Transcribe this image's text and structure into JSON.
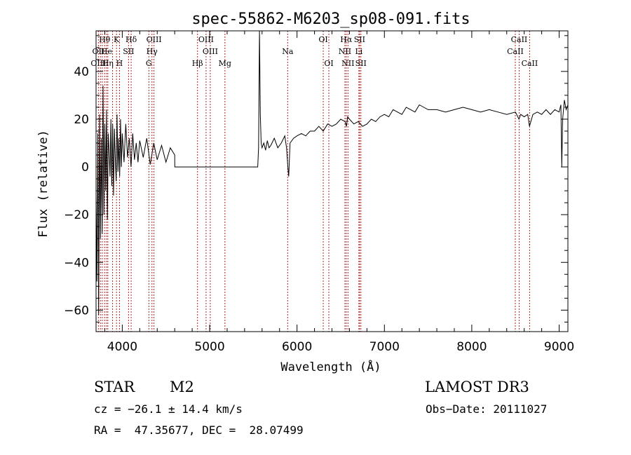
{
  "chart_data": {
    "type": "line",
    "title": "spec-55862-M6203_sp08-091.fits",
    "xlabel": "Wavelength (Å)",
    "ylabel": "Flux (relative)",
    "xlim": [
      3700,
      9100
    ],
    "ylim": [
      -69,
      57
    ],
    "xticks": [
      4000,
      5000,
      6000,
      7000,
      8000,
      9000
    ],
    "yticks": [
      -60,
      -40,
      -20,
      0,
      20,
      40
    ],
    "xtick_labels": [
      "4000",
      "5000",
      "6000",
      "7000",
      "8000",
      "9000"
    ],
    "ytick_labels": [
      "−60",
      "−40",
      "−20",
      "0",
      "20",
      "40"
    ],
    "series": [
      {
        "name": "spectrum",
        "x": [
          3700,
          3710,
          3720,
          3730,
          3740,
          3750,
          3760,
          3770,
          3780,
          3790,
          3800,
          3810,
          3820,
          3830,
          3840,
          3850,
          3860,
          3870,
          3880,
          3890,
          3900,
          3910,
          3920,
          3930,
          3940,
          3950,
          3960,
          3970,
          3980,
          3990,
          4000,
          4020,
          4040,
          4060,
          4080,
          4100,
          4120,
          4140,
          4160,
          4180,
          4200,
          4240,
          4280,
          4320,
          4360,
          4400,
          4450,
          4500,
          4550,
          4600,
          4601,
          5550,
          5560,
          5570,
          5580,
          5590,
          5600,
          5620,
          5640,
          5660,
          5680,
          5700,
          5740,
          5780,
          5820,
          5860,
          5880,
          5895,
          5905,
          5920,
          5960,
          6000,
          6050,
          6100,
          6150,
          6200,
          6250,
          6300,
          6350,
          6400,
          6450,
          6500,
          6550,
          6565,
          6580,
          6600,
          6650,
          6700,
          6750,
          6800,
          6850,
          6900,
          6950,
          7000,
          7050,
          7100,
          7150,
          7200,
          7250,
          7300,
          7350,
          7400,
          7450,
          7500,
          7600,
          7700,
          7800,
          7900,
          8000,
          8100,
          8200,
          8300,
          8400,
          8500,
          8540,
          8560,
          8600,
          8640,
          8660,
          8700,
          8750,
          8800,
          8850,
          8900,
          8950,
          9000,
          9020,
          9030,
          9040,
          9060,
          9080,
          9100
        ],
        "y": [
          -12,
          -48,
          14,
          -62,
          22,
          -30,
          12,
          -28,
          34,
          -20,
          18,
          -10,
          24,
          -22,
          14,
          6,
          -4,
          20,
          -8,
          18,
          -12,
          16,
          4,
          -6,
          22,
          -2,
          12,
          -4,
          20,
          0,
          14,
          2,
          18,
          4,
          12,
          0,
          14,
          3,
          10,
          2,
          11,
          4,
          12,
          1,
          10,
          3,
          9,
          2,
          8,
          5,
          0,
          0,
          8,
          60,
          22,
          10,
          8,
          10,
          7,
          11,
          8,
          9,
          12,
          8,
          10,
          13,
          8,
          0,
          -4,
          10,
          12,
          13,
          14,
          13,
          15,
          15,
          17,
          15,
          18,
          17,
          18,
          20,
          19,
          17,
          21,
          20,
          18,
          19,
          17,
          18,
          20,
          19,
          21,
          22,
          21,
          24,
          23,
          22,
          25,
          24,
          23,
          26,
          25,
          24,
          24,
          23,
          24,
          25,
          24,
          23,
          24,
          23,
          22,
          23,
          20,
          22,
          21,
          22,
          17,
          22,
          23,
          22,
          24,
          22,
          24,
          23,
          26,
          0,
          20,
          28,
          24,
          26
        ]
      }
    ],
    "emission_lines": [
      {
        "label": "Hθ",
        "wavelength": 3798,
        "row": 0
      },
      {
        "label": "K",
        "wavelength": 3934,
        "row": 0
      },
      {
        "label": "Hδ",
        "wavelength": 4102,
        "row": 0
      },
      {
        "label": "OIII",
        "wavelength": 4363,
        "row": 0
      },
      {
        "label": "OIII",
        "wavelength": 4959,
        "row": 0
      },
      {
        "label": "OI",
        "wavelength": 6300,
        "row": 0
      },
      {
        "label": "Hα",
        "wavelength": 6563,
        "row": 0
      },
      {
        "label": "SII",
        "wavelength": 6716,
        "row": 0
      },
      {
        "label": "CaII",
        "wavelength": 8542,
        "row": 0
      },
      {
        "label": "OII",
        "wavelength": 3727,
        "row": 1
      },
      {
        "label": "He",
        "wavelength": 3820,
        "row": 1
      },
      {
        "label": "SII",
        "wavelength": 4072,
        "row": 1
      },
      {
        "label": "Hγ",
        "wavelength": 4340,
        "row": 1
      },
      {
        "label": "OIII",
        "wavelength": 5007,
        "row": 1
      },
      {
        "label": "Na",
        "wavelength": 5893,
        "row": 1
      },
      {
        "label": "NII",
        "wavelength": 6548,
        "row": 1
      },
      {
        "label": "Li",
        "wavelength": 6708,
        "row": 1
      },
      {
        "label": "CaII",
        "wavelength": 8498,
        "row": 1
      },
      {
        "label": "OIII",
        "wavelength": 3727,
        "row": 2
      },
      {
        "label": "Hη",
        "wavelength": 3835,
        "row": 2
      },
      {
        "label": "H",
        "wavelength": 3968,
        "row": 2
      },
      {
        "label": "G",
        "wavelength": 4304,
        "row": 2
      },
      {
        "label": "Hβ",
        "wavelength": 4861,
        "row": 2
      },
      {
        "label": "Mg",
        "wavelength": 5175,
        "row": 2
      },
      {
        "label": "OI",
        "wavelength": 6364,
        "row": 2
      },
      {
        "label": "NII",
        "wavelength": 6583,
        "row": 2
      },
      {
        "label": "SII",
        "wavelength": 6731,
        "row": 2
      },
      {
        "label": "CaII",
        "wavelength": 8662,
        "row": 2
      }
    ],
    "extra_line_markers": [
      3750,
      3771,
      3889
    ],
    "line_color": "#b22222",
    "trace_color": "#000000"
  },
  "info": {
    "class": "STAR",
    "subclass": "M2",
    "survey": "LAMOST DR3",
    "cz": "cz = −26.1 ± 14.4 km/s",
    "obs_date": "Obs−Date: 20111027",
    "radec": "RA =  47.35677, DEC =  28.07499"
  }
}
